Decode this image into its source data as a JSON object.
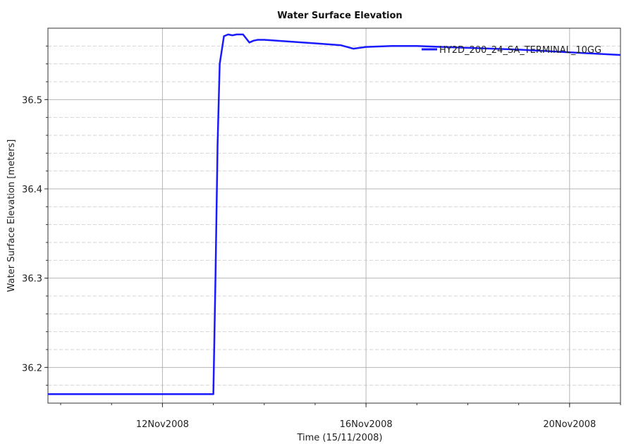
{
  "chart_data": {
    "type": "line",
    "title": "Water Surface Elevation",
    "xlabel": "Time (15/11/2008)",
    "ylabel": "Water Surface Elevation [meters]",
    "x_tick_labels": [
      "12Nov2008",
      "16Nov2008",
      "20Nov2008"
    ],
    "y_tick_labels": [
      "36.2",
      "36.3",
      "36.4",
      "36.5"
    ],
    "xlim": [
      "2008-11-09T18:00",
      "2008-11-21T00:00"
    ],
    "ylim": [
      36.16,
      36.58
    ],
    "grid": true,
    "legend_position": "top-right",
    "series": [
      {
        "name": "HY2D_200_24_SA_TERMINAL_10GG",
        "color": "#1a1aff",
        "x": [
          "2008-11-09T18:00",
          "2008-11-12T00:00",
          "2008-11-13T00:00",
          "2008-11-13T01:00",
          "2008-11-13T02:00",
          "2008-11-13T03:00",
          "2008-11-13T05:00",
          "2008-11-13T07:00",
          "2008-11-13T09:00",
          "2008-11-13T11:00",
          "2008-11-13T14:00",
          "2008-11-13T17:00",
          "2008-11-13T19:00",
          "2008-11-13T21:00",
          "2008-11-14T00:00",
          "2008-11-14T06:00",
          "2008-11-14T12:00",
          "2008-11-15T00:00",
          "2008-11-15T12:00",
          "2008-11-15T18:00",
          "2008-11-16T00:00",
          "2008-11-16T12:00",
          "2008-11-17T00:00",
          "2008-11-17T12:00",
          "2008-11-18T00:00",
          "2008-11-18T12:00",
          "2008-11-19T00:00",
          "2008-11-20T00:00",
          "2008-11-21T00:00"
        ],
        "values": [
          36.17,
          36.17,
          36.17,
          36.3,
          36.45,
          36.54,
          36.571,
          36.573,
          36.572,
          36.573,
          36.573,
          36.564,
          36.566,
          36.567,
          36.567,
          36.566,
          36.565,
          36.563,
          36.561,
          36.557,
          36.559,
          36.56,
          36.56,
          36.559,
          36.558,
          36.557,
          36.556,
          36.553,
          36.55
        ]
      }
    ]
  }
}
